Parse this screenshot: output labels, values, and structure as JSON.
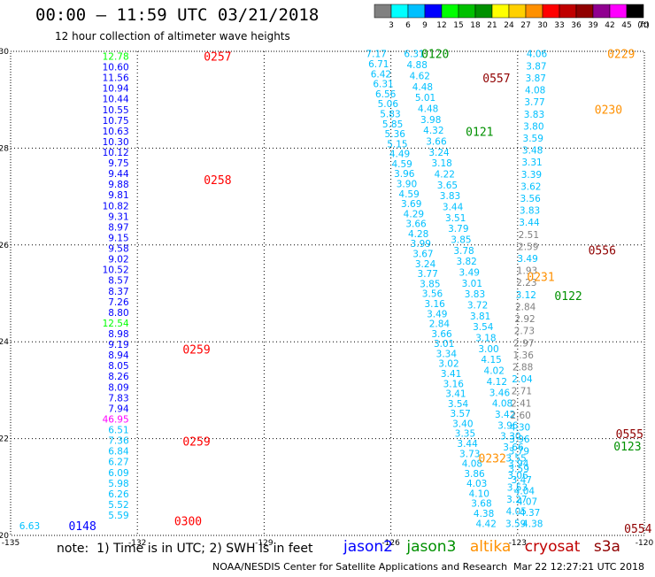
{
  "header": {
    "title": "00:00 – 11:59 UTC 03/21/2018",
    "subtitle": "12 hour collection of altimeter wave heights"
  },
  "colorbar": {
    "unit_label": "(ft)",
    "bins": [
      {
        "label": "3",
        "color": "#808080"
      },
      {
        "label": "6",
        "color": "#00ffff"
      },
      {
        "label": "9",
        "color": "#00c0ff"
      },
      {
        "label": "12",
        "color": "#0000ff"
      },
      {
        "label": "15",
        "color": "#00ff00"
      },
      {
        "label": "18",
        "color": "#00c000"
      },
      {
        "label": "21",
        "color": "#009000"
      },
      {
        "label": "24",
        "color": "#ffff00"
      },
      {
        "label": "27",
        "color": "#ffd000"
      },
      {
        "label": "30",
        "color": "#ff9000"
      },
      {
        "label": "33",
        "color": "#ff0000"
      },
      {
        "label": "36",
        "color": "#c00000"
      },
      {
        "label": "39",
        "color": "#900000"
      },
      {
        "label": "42",
        "color": "#900090"
      },
      {
        "label": "45",
        "color": "#ff00ff"
      },
      {
        "label": "70",
        "color": "#000000"
      }
    ]
  },
  "footer": {
    "note": "note:  1) Time is in UTC; 2) SWH is in feet",
    "legend": [
      {
        "name": "jason2",
        "color": "#0000ff"
      },
      {
        "name": "jason3",
        "color": "#009000"
      },
      {
        "name": "altika",
        "color": "#ff9000"
      },
      {
        "name": "cryosat",
        "color": "#c00000"
      },
      {
        "name": "s3a",
        "color": "#900000"
      }
    ],
    "credit": "NOAA/NESDIS Center for Satellite Applications and Research",
    "timestamp": "Mar 22 12:27:21 UTC 2018"
  },
  "chart_data": {
    "type": "scatter",
    "xlim": [
      -135,
      -120
    ],
    "ylim": [
      20,
      30
    ],
    "x_ticks": [
      "-135",
      "-132",
      "-129",
      "-126",
      "-123",
      "-120"
    ],
    "y_ticks": [
      "20",
      "22",
      "24",
      "26",
      "28",
      "30"
    ],
    "grid": "dotted",
    "track1": {
      "lon": -132.2,
      "lat_top": 29.9,
      "lat_bottom": 20.2,
      "values": [
        "12.78",
        "10.60",
        "11.56",
        "10.94",
        "10.44",
        "10.55",
        "10.75",
        "10.63",
        "10.30",
        "10.12",
        "9.75",
        "9.44",
        "9.88",
        "9.81",
        "10.82",
        "9.31",
        "8.97",
        "9.15",
        "9.58",
        "9.02",
        "10.52",
        "8.57",
        "8.37",
        "7.26",
        "8.80",
        "12.54",
        "8.98",
        "9.19",
        "8.94",
        "8.05",
        "8.26",
        "8.09",
        "7.83",
        "7.94",
        "46.95",
        "6.51",
        "7.36",
        "6.84",
        "6.27",
        "6.09",
        "5.98",
        "6.26",
        "5.52",
        "5.59",
        "6.63"
      ],
      "colors": {
        "12.78": "#00ff00",
        "12.54": "#00ff00",
        "46.95": "#ff00ff"
      }
    },
    "track2": {
      "lon_top": -126.1,
      "lon_bottom": -123.5,
      "lat_top": 29.95,
      "lat_bottom": 20.25,
      "values": [
        "7.17",
        "6.71",
        "6.42",
        "6.31",
        "6.56",
        "5.06",
        "5.83",
        "5.85",
        "5.36",
        "5.15",
        "4.49",
        "4.59",
        "3.96",
        "3.90",
        "4.59",
        "3.69",
        "4.29",
        "3.66",
        "4.28",
        "3.99",
        "3.67",
        "3.24",
        "3.77",
        "3.85",
        "3.56",
        "3.16",
        "3.49",
        "2.84",
        "3.66",
        "3.01",
        "3.34",
        "3.02",
        "3.41",
        "3.16",
        "3.41",
        "3.54",
        "3.57",
        "3.40",
        "3.35",
        "3.44",
        "3.73",
        "4.08",
        "3.86",
        "4.03",
        "4.10",
        "3.68",
        "4.38",
        "4.42"
      ]
    },
    "track3": {
      "lon_top": -125.2,
      "lon_bottom": -122.4,
      "lat_top": 29.95,
      "lat_bottom": 20.25,
      "values": [
        "6.31",
        "4.88",
        "4.62",
        "4.48",
        "5.01",
        "4.48",
        "3.98",
        "4.32",
        "3.66",
        "3.24",
        "3.18",
        "4.22",
        "3.65",
        "3.83",
        "3.44",
        "3.51",
        "3.79",
        "3.85",
        "3.78",
        "3.82",
        "3.49",
        "3.01",
        "3.83",
        "3.72",
        "3.81",
        "3.54",
        "3.18",
        "3.00",
        "4.15",
        "4.02",
        "4.12",
        "3.46",
        "4.08",
        "3.42",
        "3.96",
        "3.30",
        "3.66",
        "3.55",
        "3.59",
        "3.47",
        "4.04",
        "4.07",
        "4.37",
        "4.38"
      ]
    },
    "track4": {
      "lon_top": -122.3,
      "lon_bottom": -122.8,
      "lat_top": 29.95,
      "lat_bottom": 20.25,
      "values": [
        "4.06",
        "3.87",
        "3.87",
        "4.08",
        "3.77",
        "3.83",
        "3.80",
        "3.59",
        "3.48",
        "3.31",
        "3.39",
        "3.62",
        "3.56",
        "3.83",
        "3.44",
        "2.51",
        "2.59",
        "3.49",
        "1.93",
        "2.23",
        "3.12",
        "2.84",
        "2.92",
        "2.73",
        "2.97",
        "1.36",
        "2.88",
        "2.04",
        "2.71",
        "2.41",
        "2.60",
        "4.30",
        "3.96",
        "3.79",
        "3.94",
        "3.06",
        "3.53",
        "3.27",
        "4.05",
        "3.59"
      ],
      "colors": {
        "2.51": "#808080",
        "2.59": "#808080",
        "1.93": "#808080",
        "2.23": "#808080",
        "2.84": "#808080",
        "2.92": "#808080",
        "2.73": "#808080",
        "2.97": "#808080",
        "1.36": "#808080",
        "2.88": "#808080",
        "2.71": "#808080",
        "2.41": "#808080",
        "2.60": "#808080"
      }
    },
    "time_labels": [
      {
        "text": "0257",
        "lon": -130.1,
        "lat": 29.9,
        "color": "#ff0000"
      },
      {
        "text": "0258",
        "lon": -130.1,
        "lat": 27.35,
        "color": "#ff0000"
      },
      {
        "text": "0259",
        "lon": -130.6,
        "lat": 23.85,
        "color": "#ff0000"
      },
      {
        "text": "0259",
        "lon": -130.6,
        "lat": 21.95,
        "color": "#ff0000"
      },
      {
        "text": "0300",
        "lon": -130.8,
        "lat": 20.3,
        "color": "#ff0000"
      },
      {
        "text": "0148",
        "lon": -133.3,
        "lat": 20.2,
        "color": "#0000ff"
      },
      {
        "text": "0120",
        "lon": -124.95,
        "lat": 29.95,
        "color": "#009000"
      },
      {
        "text": "0121",
        "lon": -123.9,
        "lat": 28.35,
        "color": "#009000"
      },
      {
        "text": "0122",
        "lon": -121.8,
        "lat": 24.95,
        "color": "#009000"
      },
      {
        "text": "0123",
        "lon": -120.4,
        "lat": 21.85,
        "color": "#009000"
      },
      {
        "text": "0229",
        "lon": -120.55,
        "lat": 29.95,
        "color": "#ff9000"
      },
      {
        "text": "0230",
        "lon": -120.85,
        "lat": 28.8,
        "color": "#ff9000"
      },
      {
        "text": "0231",
        "lon": -122.45,
        "lat": 25.35,
        "color": "#ff9000"
      },
      {
        "text": "0232",
        "lon": -123.6,
        "lat": 21.6,
        "color": "#ff9000"
      },
      {
        "text": "0557",
        "lon": -123.5,
        "lat": 29.45,
        "color": "#900000"
      },
      {
        "text": "0556",
        "lon": -121.0,
        "lat": 25.9,
        "color": "#900000"
      },
      {
        "text": "0555",
        "lon": -120.35,
        "lat": 22.1,
        "color": "#900000"
      },
      {
        "text": "0554",
        "lon": -120.15,
        "lat": 20.15,
        "color": "#900000"
      }
    ]
  }
}
